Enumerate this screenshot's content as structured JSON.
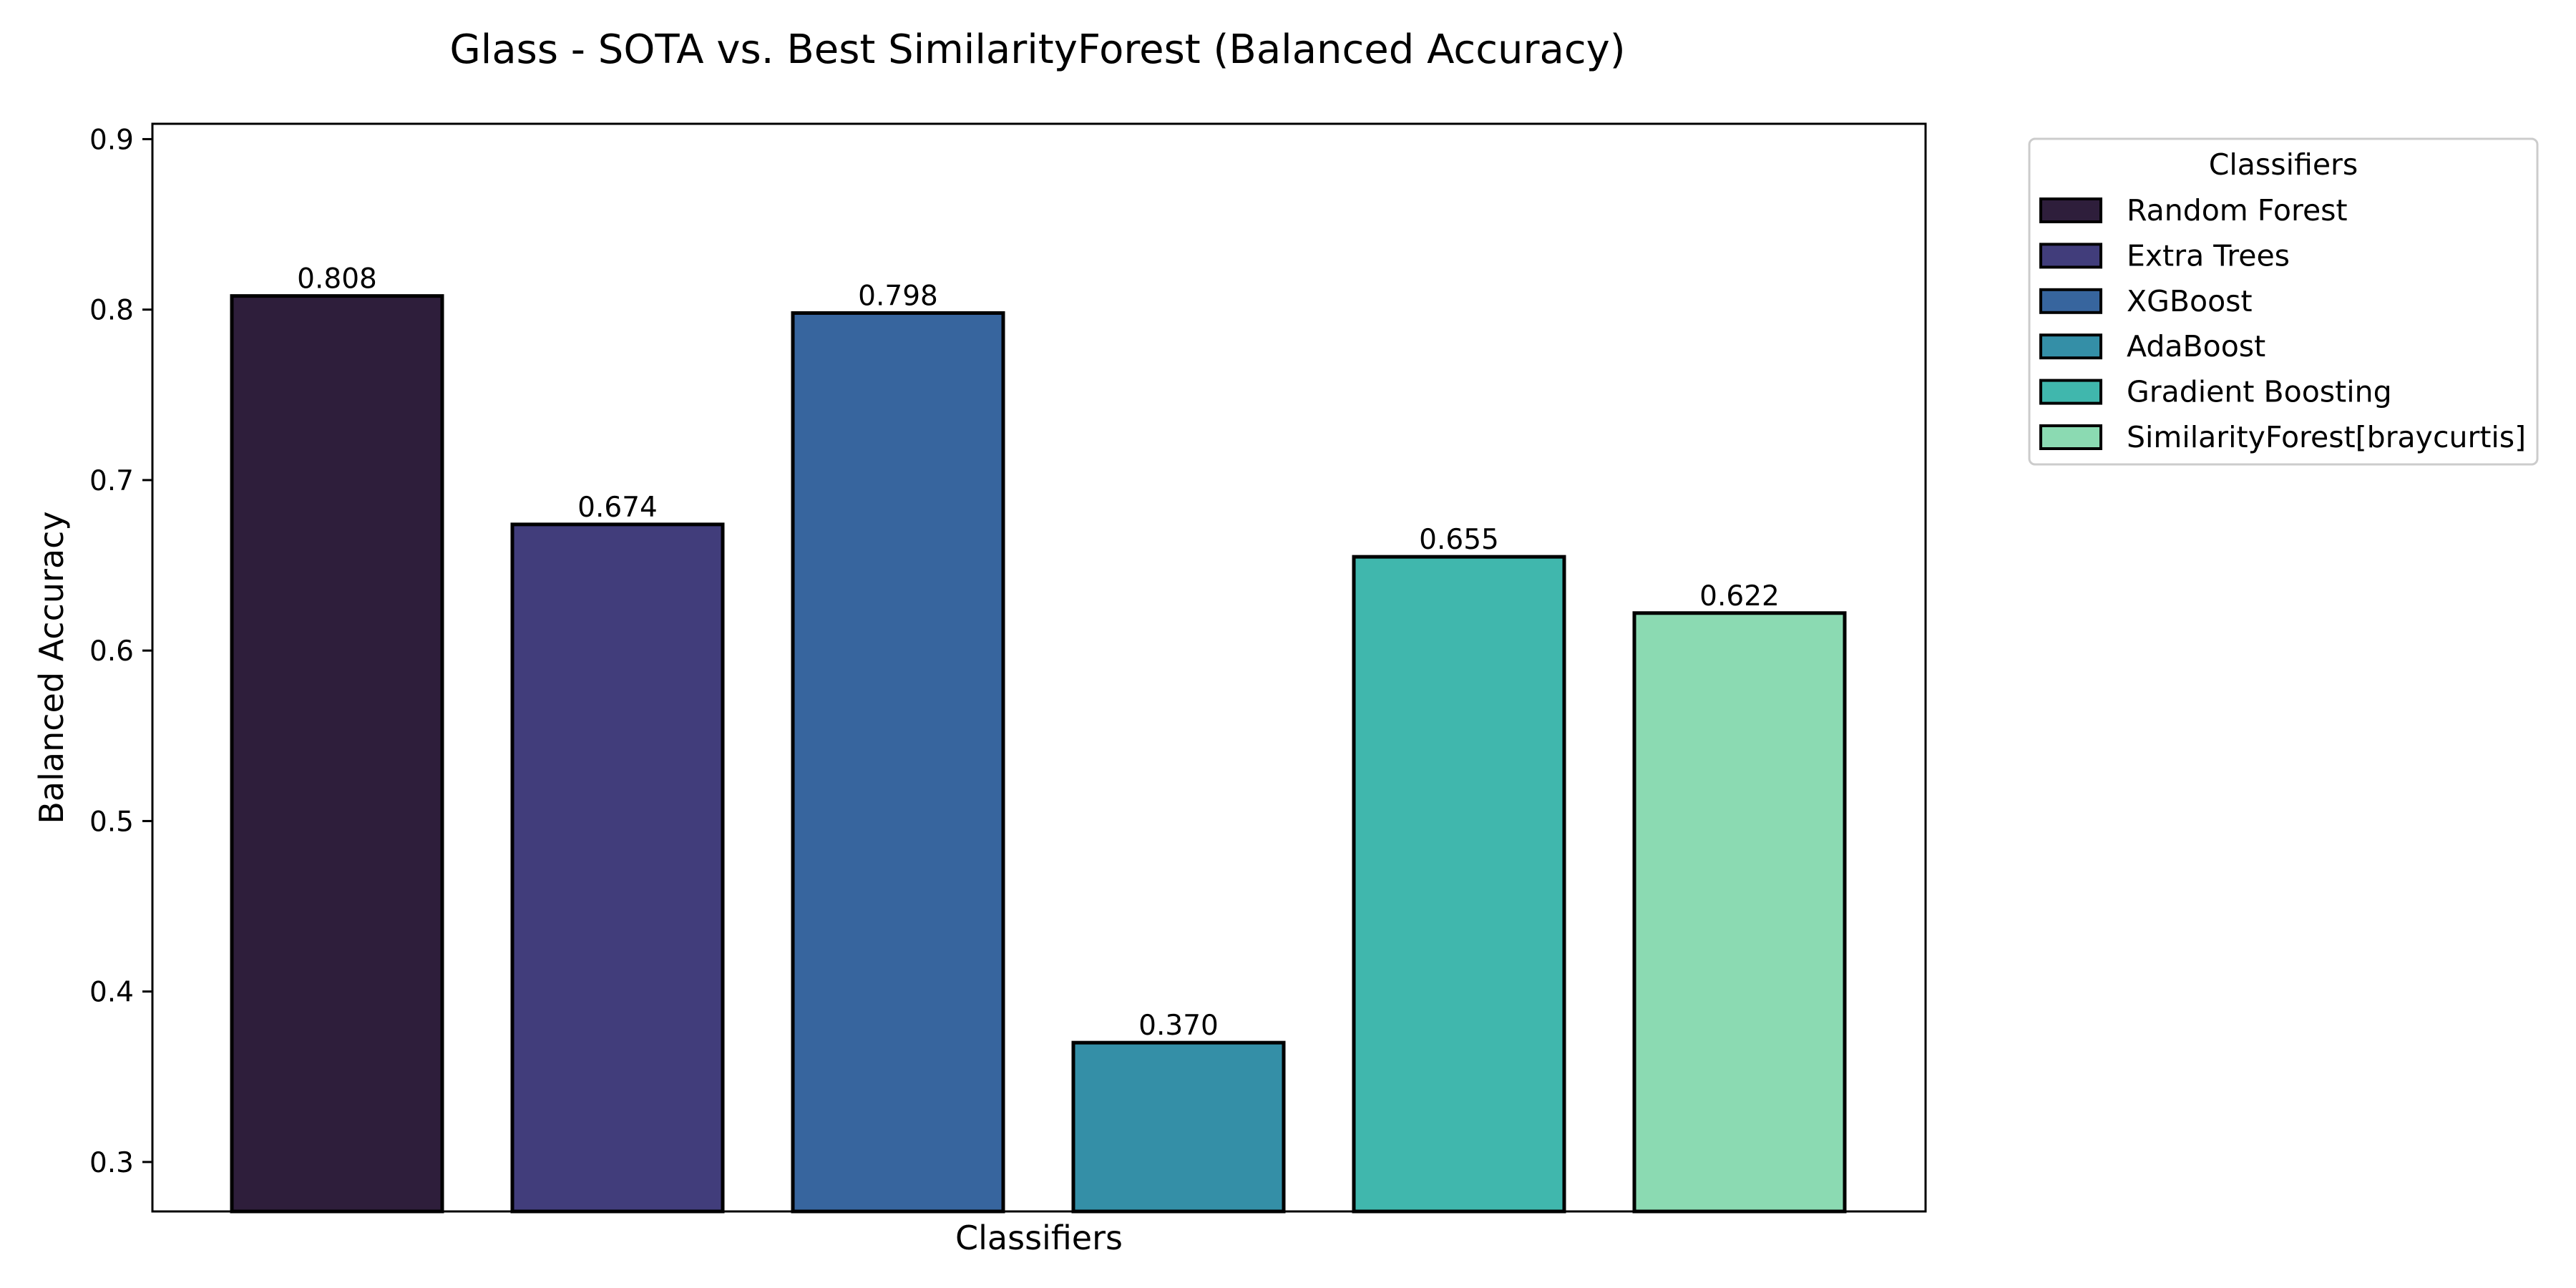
{
  "chart_data": {
    "type": "bar",
    "title": "Glass - SOTA vs. Best SimilarityForest (Balanced Accuracy)",
    "xlabel": "Classifiers",
    "ylabel": "Balanced Accuracy",
    "categories": [
      "Random Forest",
      "Extra Trees",
      "XGBoost",
      "AdaBoost",
      "Gradient Boosting",
      "SimilarityForest[braycurtis]"
    ],
    "values": [
      0.808,
      0.674,
      0.798,
      0.37,
      0.655,
      0.622
    ],
    "value_labels": [
      "0.808",
      "0.674",
      "0.798",
      "0.370",
      "0.655",
      "0.622"
    ],
    "colors": [
      "#2e1e3b",
      "#413d7b",
      "#37659e",
      "#348fa7",
      "#40b7ad",
      "#8bdab2"
    ],
    "ylim": [
      0.271,
      0.909
    ],
    "yticks": [
      0.3,
      0.4,
      0.5,
      0.6,
      0.7,
      0.8,
      0.9
    ],
    "ytick_labels": [
      "0.3",
      "0.4",
      "0.5",
      "0.6",
      "0.7",
      "0.8",
      "0.9"
    ],
    "grid": false,
    "legend": {
      "title": "Classifiers",
      "placement": "outside-upper-right",
      "entries": [
        "Random Forest",
        "Extra Trees",
        "XGBoost",
        "AdaBoost",
        "Gradient Boosting",
        "SimilarityForest[braycurtis]"
      ]
    }
  }
}
